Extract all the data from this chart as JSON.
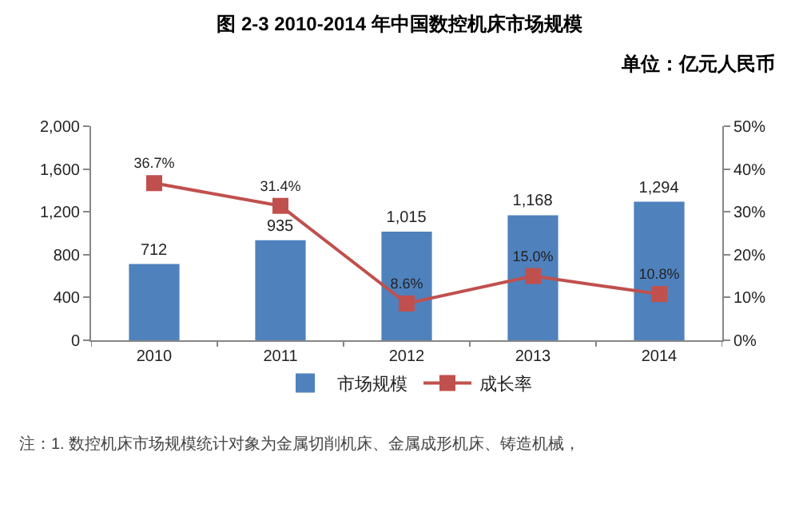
{
  "chart_data": {
    "type": "bar",
    "title": "图 2-3 2010-2014 年中国数控机床市场规模",
    "subtitle": "单位：亿元人民币",
    "categories": [
      "2010",
      "2011",
      "2012",
      "2013",
      "2014"
    ],
    "series": [
      {
        "name": "市场规模",
        "color": "#4f81bd",
        "values": [
          712,
          935,
          1015,
          1168,
          1294
        ],
        "value_labels": [
          "712",
          "935",
          "1,015",
          "1,168",
          "1,294"
        ]
      },
      {
        "name": "成长率",
        "type": "line",
        "axis": "y2",
        "color": "#c0504d",
        "values": [
          36.7,
          31.4,
          8.6,
          15.0,
          10.8
        ],
        "value_labels": [
          "36.7%",
          "31.4%",
          "8.6%",
          "15.0%",
          "10.8%"
        ]
      }
    ],
    "ylim": [
      0,
      2000
    ],
    "yticks": [
      0,
      {
        "value": 400,
        "label": "400"
      },
      {
        "value": 800,
        "label": "800"
      },
      {
        "value": 1200,
        "label": "1,200"
      },
      {
        "value": 1600,
        "label": "1,600"
      },
      {
        "value": 2000,
        "label": "2,000"
      }
    ],
    "y2lim": [
      0,
      50
    ],
    "y2ticks": [
      {
        "value": 0,
        "label": "0%"
      },
      {
        "value": 10,
        "label": "10%"
      },
      {
        "value": 20,
        "label": "20%"
      },
      {
        "value": 30,
        "label": "30%"
      },
      {
        "value": 40,
        "label": "40%"
      },
      {
        "value": 50,
        "label": "50%"
      }
    ],
    "marker": "square",
    "line_style": "solid",
    "legend": "bottom",
    "annotations": [
      "注：1. 数控机床市场规模统计对象为金属切削机床、金属成形机床、铸造机械，"
    ]
  }
}
